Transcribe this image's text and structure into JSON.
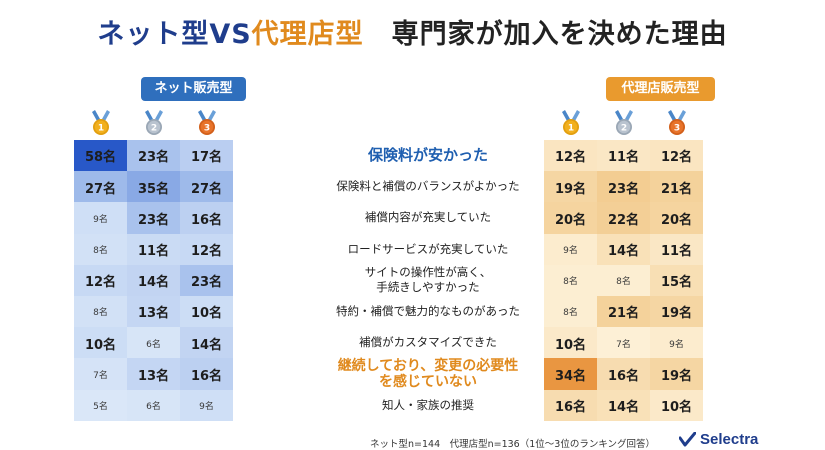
{
  "title": {
    "net": "ネット型",
    "vs": "VS",
    "dairi": "代理店型",
    "rest": "専門家が加入を決めた理由"
  },
  "badges": {
    "net": "ネット販売型",
    "dairi": "代理店販売型"
  },
  "medals": [
    "1",
    "2",
    "3"
  ],
  "reasons": [
    "保険料が安かった",
    "保険料と補償のバランスがよかった",
    "補償内容が充実していた",
    "ロードサービスが充実していた",
    "サイトの操作性が高く、\n手続きしやすかった",
    "特約・補償で魅力的なものがあった",
    "補償がカスタマイズできた",
    "継続しており、変更の必要性\nを感じていない",
    "知人・家族の推奨"
  ],
  "footnote": "ネット型n=144　代理店型n=136（1位〜3位のランキング回答）",
  "logo": "Selectra",
  "colors": {
    "net_accent": "#2f6fbd",
    "dairi_accent": "#e99a2e",
    "title_blue": "#1f3d8c",
    "title_orange": "#e08a1e"
  },
  "chart_data": [
    {
      "type": "heatmap",
      "title": "ネット販売型",
      "categories": [
        "1",
        "2",
        "3"
      ],
      "rows": [
        "保険料が安かった",
        "保険料と補償のバランスがよかった",
        "補償内容が充実していた",
        "ロードサービスが充実していた",
        "サイトの操作性が高く、手続きしやすかった",
        "特約・補償で魅力的なものがあった",
        "補償がカスタマイズできた",
        "継続しており、変更の必要性を感じていない",
        "知人・家族の推奨"
      ],
      "values": [
        [
          58,
          23,
          17
        ],
        [
          27,
          35,
          27
        ],
        [
          9,
          23,
          16
        ],
        [
          8,
          11,
          12
        ],
        [
          12,
          14,
          23
        ],
        [
          8,
          13,
          10
        ],
        [
          10,
          6,
          14
        ],
        [
          7,
          13,
          16
        ],
        [
          5,
          6,
          9
        ]
      ],
      "unit": "名",
      "n": 144
    },
    {
      "type": "heatmap",
      "title": "代理店販売型",
      "categories": [
        "1",
        "2",
        "3"
      ],
      "rows": [
        "保険料が安かった",
        "保険料と補償のバランスがよかった",
        "補償内容が充実していた",
        "ロードサービスが充実していた",
        "サイトの操作性が高く、手続きしやすかった",
        "特約・補償で魅力的なものがあった",
        "補償がカスタマイズできた",
        "継続しており、変更の必要性を感じていない",
        "知人・家族の推奨"
      ],
      "values": [
        [
          12,
          11,
          12
        ],
        [
          19,
          23,
          21
        ],
        [
          20,
          22,
          20
        ],
        [
          9,
          14,
          11
        ],
        [
          8,
          8,
          15
        ],
        [
          8,
          21,
          19
        ],
        [
          10,
          7,
          9
        ],
        [
          34,
          16,
          19
        ],
        [
          16,
          14,
          10
        ]
      ],
      "unit": "名",
      "n": 136
    }
  ]
}
